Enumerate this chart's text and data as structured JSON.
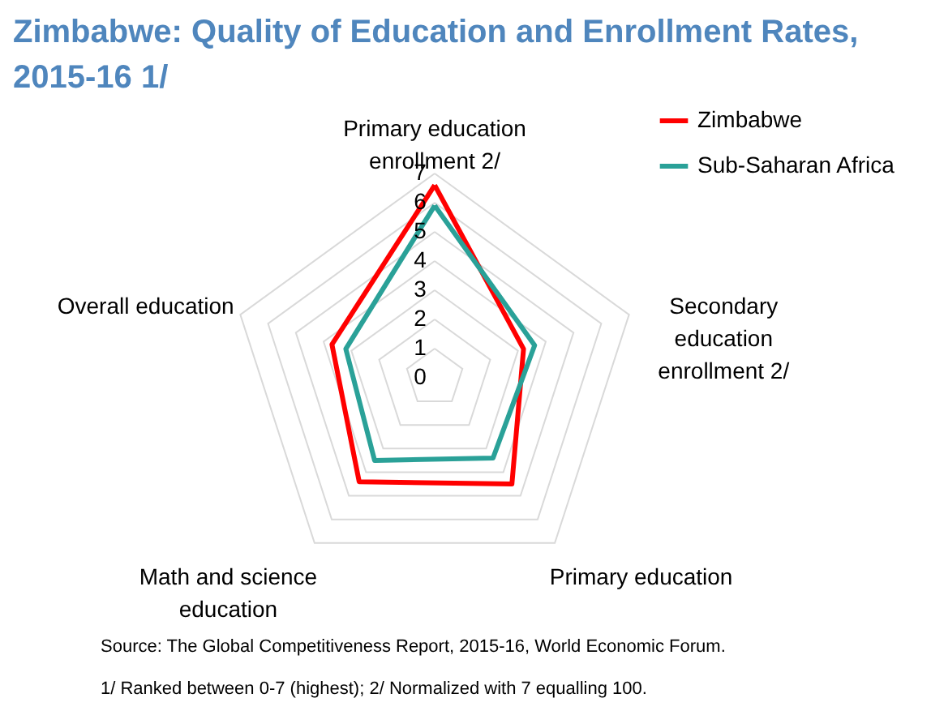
{
  "chart_data": {
    "type": "radar",
    "title": "Zimbabwe: Quality of Education and Enrollment Rates, 2015-16 1/",
    "categories": [
      "Primary education enrollment  2/",
      "Secondary education enrollment  2/",
      "Primary education",
      "Math and science education",
      "Overall education"
    ],
    "series": [
      {
        "name": "Zimbabwe",
        "color": "#ff0000",
        "values": [
          6.6,
          3.2,
          4.5,
          4.4,
          3.7
        ]
      },
      {
        "name": "Sub-Saharan Africa",
        "color": "#2aa198",
        "values": [
          5.9,
          3.6,
          3.4,
          3.5,
          3.2
        ]
      }
    ],
    "ylim": [
      0,
      7
    ],
    "yticks": [
      0,
      1,
      2,
      3,
      4,
      5,
      6,
      7
    ],
    "grid": true,
    "legend": "top right",
    "annotations": [
      "Source: The Global Competitiveness Report, 2015-16, World Economic Forum.",
      "1/ Ranked between 0-7 (highest);  2/ Normalized with 7 equalling 100."
    ]
  }
}
